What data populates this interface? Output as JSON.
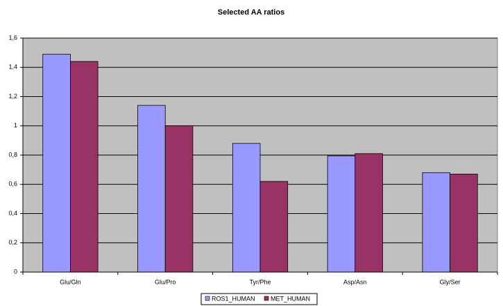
{
  "chart_data": {
    "type": "bar",
    "title": "Selected AA ratios",
    "categories": [
      "Glu/Gln",
      "Glu/Pro",
      "Tyr/Phe",
      "Asp/Asn",
      "Gly/Ser"
    ],
    "series": [
      {
        "name": "ROS1_HUMAN",
        "color": "#9999ff",
        "values": [
          1.49,
          1.14,
          0.88,
          0.795,
          0.68
        ]
      },
      {
        "name": "MET_HUMAN",
        "color": "#993366",
        "values": [
          1.44,
          1.0,
          0.62,
          0.81,
          0.67
        ]
      }
    ],
    "ylim": [
      0,
      1.6
    ],
    "yticks": [
      0,
      {
        "value": 0.2,
        "label": "0,2"
      },
      {
        "value": 0.4,
        "label": "0,4"
      },
      {
        "value": 0.6,
        "label": "0,6"
      },
      {
        "value": 0.8,
        "label": "0,8"
      },
      1,
      {
        "value": 1.2,
        "label": "1,2"
      },
      {
        "value": 1.4,
        "label": "1,4"
      },
      {
        "value": 1.6,
        "label": "1,6"
      }
    ],
    "grid": true,
    "legend": "bottom"
  }
}
